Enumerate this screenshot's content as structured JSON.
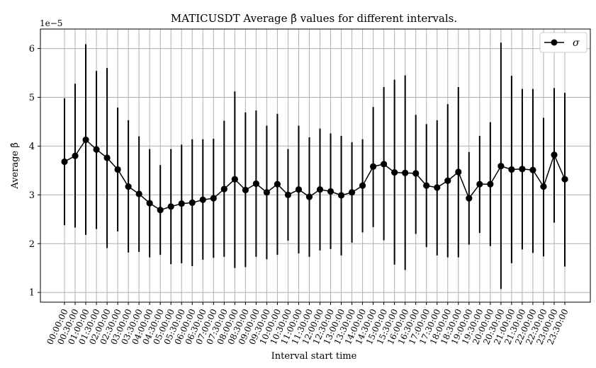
{
  "chart_data": {
    "type": "line",
    "title": "MATICUSDT Average β̂ values for different intervals.",
    "xlabel": "Interval start time",
    "ylabel": "Average β̂",
    "y_scale_label": "1e−5",
    "ylim": [
      0.8,
      6.4
    ],
    "yticks": [
      1,
      2,
      3,
      4,
      5,
      6
    ],
    "grid": true,
    "legend": {
      "placement": "top-right",
      "label": "σ"
    },
    "colors": {
      "series": "#000000",
      "grid": "#b0b0b0"
    },
    "categories": [
      "00:00:00",
      "00:30:00",
      "01:00:00",
      "01:30:00",
      "02:00:00",
      "02:30:00",
      "03:00:00",
      "03:30:00",
      "04:00:00",
      "04:30:00",
      "05:00:00",
      "05:30:00",
      "06:00:00",
      "06:30:00",
      "07:00:00",
      "07:30:00",
      "08:00:00",
      "08:30:00",
      "09:00:00",
      "09:30:00",
      "10:00:00",
      "10:30:00",
      "11:00:00",
      "11:30:00",
      "12:00:00",
      "12:30:00",
      "13:00:00",
      "13:30:00",
      "14:00:00",
      "14:30:00",
      "15:00:00",
      "15:30:00",
      "16:00:00",
      "16:30:00",
      "17:00:00",
      "17:30:00",
      "18:00:00",
      "18:30:00",
      "19:00:00",
      "19:30:00",
      "20:00:00",
      "20:30:00",
      "21:00:00",
      "21:30:00",
      "22:00:00",
      "22:30:00",
      "23:00:00",
      "23:30:00"
    ],
    "series": [
      {
        "name": "σ",
        "values": [
          3.68,
          3.8,
          4.13,
          3.93,
          3.76,
          3.52,
          3.17,
          3.02,
          2.83,
          2.69,
          2.76,
          2.82,
          2.84,
          2.9,
          2.93,
          3.12,
          3.32,
          3.1,
          3.23,
          3.05,
          3.22,
          3.0,
          3.11,
          2.96,
          3.11,
          3.07,
          2.99,
          3.05,
          3.19,
          3.58,
          3.63,
          3.46,
          3.45,
          3.44,
          3.19,
          3.15,
          3.29,
          3.47,
          2.93,
          3.22,
          3.22,
          3.59,
          3.52,
          3.53,
          3.51,
          3.17,
          3.82,
          3.32
        ],
        "err_low": [
          2.38,
          2.33,
          2.18,
          2.3,
          1.91,
          2.25,
          1.82,
          1.83,
          1.72,
          1.77,
          1.58,
          1.6,
          1.54,
          1.67,
          1.71,
          1.73,
          1.5,
          1.52,
          1.73,
          1.68,
          1.77,
          2.06,
          1.8,
          1.73,
          1.86,
          1.89,
          1.76,
          2.02,
          2.23,
          2.34,
          2.07,
          1.57,
          1.46,
          2.2,
          1.93,
          1.76,
          1.72,
          1.72,
          1.98,
          2.22,
          1.95,
          1.07,
          1.6,
          1.88,
          1.81,
          1.74,
          2.43,
          1.53
        ],
        "err_high": [
          4.98,
          5.28,
          6.09,
          5.54,
          5.6,
          4.79,
          4.53,
          4.2,
          3.94,
          3.61,
          3.94,
          4.03,
          4.14,
          4.14,
          4.15,
          4.52,
          5.12,
          4.69,
          4.73,
          4.42,
          4.66,
          3.94,
          4.42,
          4.18,
          4.36,
          4.26,
          4.21,
          4.08,
          4.14,
          4.8,
          5.21,
          5.36,
          5.45,
          4.64,
          4.45,
          4.53,
          4.86,
          5.21,
          3.88,
          4.21,
          4.49,
          6.12,
          5.44,
          5.17,
          5.17,
          4.58,
          5.19,
          5.09
        ]
      }
    ]
  }
}
